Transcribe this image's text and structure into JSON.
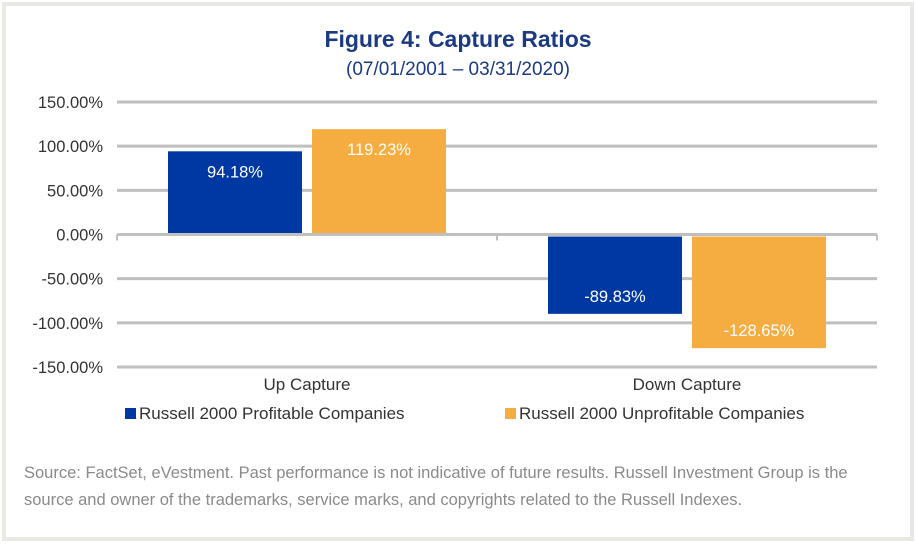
{
  "chart_data": {
    "type": "bar",
    "title": "Figure 4: Capture Ratios",
    "subtitle": "(07/01/2001 – 03/31/2020)",
    "categories": [
      "Up Capture",
      "Down Capture"
    ],
    "series": [
      {
        "name": "Russell 2000 Profitable Companies",
        "values": [
          94.18,
          -89.83
        ],
        "labels": [
          "94.18%",
          "-89.83%"
        ],
        "color": "#0038a3"
      },
      {
        "name": "Russell 2000 Unprofitable Companies",
        "values": [
          119.23,
          -128.65
        ],
        "labels": [
          "119.23%",
          "-128.65%"
        ],
        "color": "#f5ac40"
      }
    ],
    "ylim": [
      -150,
      150
    ],
    "yticks": [
      150,
      100,
      50,
      0,
      -50,
      -100,
      -150
    ],
    "ytick_labels": [
      "150.00%",
      "100.00%",
      "50.00%",
      "0.00%",
      "-50.00%",
      "-100.00%",
      "-150.00%"
    ],
    "grid": true,
    "legend": "bottom"
  },
  "source": "Source: FactSet, eVestment. Past performance is not indicative of future results. Russell Investment Group is the source and owner of the trademarks, service marks, and copyrights related to the Russell Indexes."
}
